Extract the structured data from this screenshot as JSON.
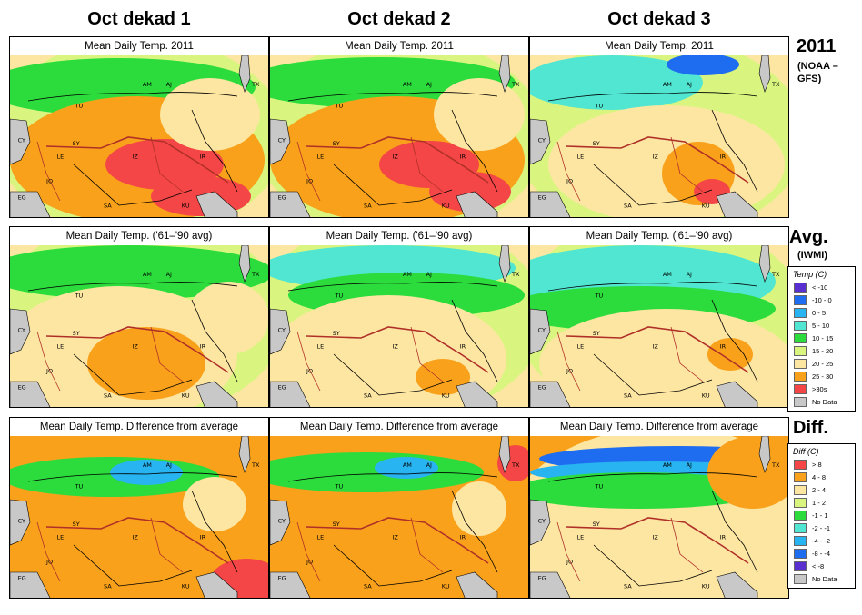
{
  "columns": [
    "Oct dekad 1",
    "Oct dekad 2",
    "Oct dekad 3"
  ],
  "rows": [
    {
      "heading": "2011",
      "sub": "(NOAA –GFS)",
      "panel_title": "Mean Daily Temp. 2011"
    },
    {
      "heading": "Avg.",
      "sub": "(IWMI)",
      "panel_title": "Mean Daily Temp. ('61–'90 avg)"
    },
    {
      "heading": "Diff.",
      "sub": "",
      "panel_title": "Mean Daily Temp. Difference from average"
    }
  ],
  "region_labels": [
    "AM",
    "AJ",
    "TX",
    "TU",
    "CY",
    "SY",
    "LE",
    "IZ",
    "IR",
    "JO",
    "EG",
    "SA",
    "KU"
  ],
  "temp_legend": {
    "title": "Temp (C)",
    "items": [
      {
        "label": "< -10",
        "color": "#5a2fd0"
      },
      {
        "label": "-10 - 0",
        "color": "#1e6cf0"
      },
      {
        "label": "0 - 5",
        "color": "#28b4f0"
      },
      {
        "label": "5 - 10",
        "color": "#50e6d2"
      },
      {
        "label": "10 - 15",
        "color": "#2bdc3c"
      },
      {
        "label": "15 - 20",
        "color": "#d9f57f"
      },
      {
        "label": "20 - 25",
        "color": "#fde6a2"
      },
      {
        "label": "25 - 30",
        "color": "#f9a11b"
      },
      {
        "label": ">30s",
        "color": "#f44646"
      },
      {
        "label": "No Data",
        "color": "#c8c8c8"
      }
    ]
  },
  "diff_legend": {
    "title": "Diff (C)",
    "items": [
      {
        "label": "> 8",
        "color": "#f44646"
      },
      {
        "label": "4 - 8",
        "color": "#f9a11b"
      },
      {
        "label": "2 - 4",
        "color": "#fde6a2"
      },
      {
        "label": "1 - 2",
        "color": "#d9f57f"
      },
      {
        "label": "-1 - 1",
        "color": "#2bdc3c"
      },
      {
        "label": "-2 - -1",
        "color": "#50e6d2"
      },
      {
        "label": "-4 - -2",
        "color": "#28b4f0"
      },
      {
        "label": "-8 - -4",
        "color": "#1e6cf0"
      },
      {
        "label": "< -8",
        "color": "#5a2fd0"
      },
      {
        "label": "No Data",
        "color": "#c8c8c8"
      }
    ]
  },
  "colors": {
    "hot": "#f44646",
    "warm": "#f9a11b",
    "mild": "#fde6a2",
    "cool": "#d9f57f",
    "green": "#2bdc3c",
    "aqua": "#50e6d2",
    "sky": "#28b4f0",
    "blue": "#1e6cf0",
    "sea": "#c8c8c8",
    "border": "#c0302a"
  }
}
